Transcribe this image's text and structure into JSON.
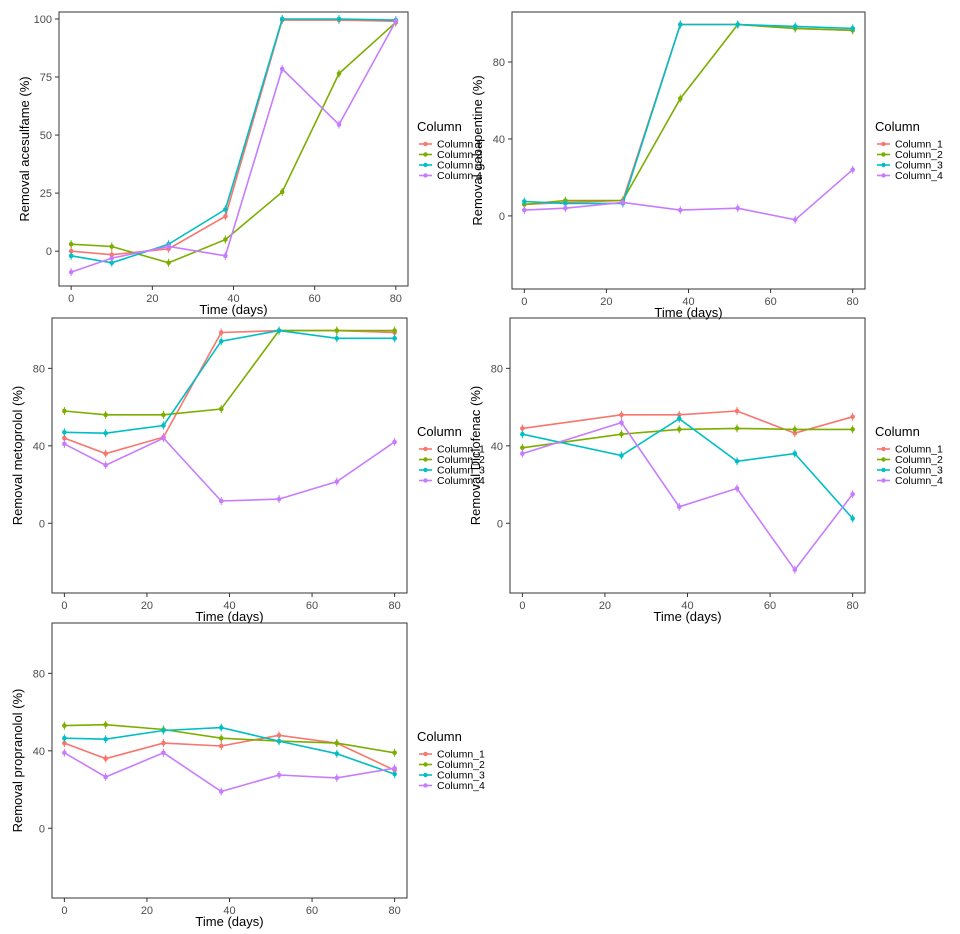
{
  "chart_data": [
    {
      "type": "line",
      "ylabel": "Removal acesulfame (%)",
      "xlabel": "Time (days)",
      "xlim": [
        -3,
        83
      ],
      "ylim": [
        -15,
        103
      ],
      "xticks": [
        0,
        20,
        40,
        60,
        80
      ],
      "yticks": [
        0,
        25,
        50,
        75,
        100
      ],
      "legend_title": "Column",
      "legend_placement": "right",
      "series": [
        {
          "name": "Column  1",
          "color": "#F8766D",
          "x": [
            0,
            10,
            24,
            38,
            52,
            66,
            80
          ],
          "y": [
            0,
            -1.5,
            1,
            15,
            99.5,
            99.5,
            99
          ]
        },
        {
          "name": "Column  2",
          "color": "#7CAE00",
          "x": [
            0,
            10,
            24,
            38,
            52,
            66,
            80
          ],
          "y": [
            3,
            2,
            -5,
            5,
            25.5,
            76.5,
            98.5
          ]
        },
        {
          "name": "Column  3",
          "color": "#00BFC4",
          "x": [
            0,
            10,
            24,
            38,
            52,
            66,
            80
          ],
          "y": [
            -2,
            -5,
            3,
            18,
            100,
            100,
            99.5
          ]
        },
        {
          "name": "Column  4",
          "color": "#C77CFF",
          "x": [
            0,
            10,
            24,
            38,
            52,
            66,
            80
          ],
          "y": [
            -9,
            -3,
            2,
            -2,
            78.5,
            54.5,
            99
          ]
        }
      ]
    },
    {
      "type": "line",
      "ylabel": "Removal gabapentine (%)",
      "xlabel": "Time (days)",
      "xlim": [
        -3,
        83
      ],
      "ylim": [
        -38,
        106
      ],
      "xticks": [
        0,
        20,
        40,
        60,
        80
      ],
      "yticks": [
        0,
        40,
        80
      ],
      "legend_title": "Column",
      "legend_placement": "right",
      "series": [
        {
          "name": "Column_1",
          "color": "#F8766D",
          "x": [
            0,
            10,
            24,
            38,
            52,
            66,
            80
          ],
          "y": [
            6,
            7,
            8,
            99.5,
            99.5,
            97.5,
            96.5
          ]
        },
        {
          "name": "Column_2",
          "color": "#7CAE00",
          "x": [
            0,
            10,
            24,
            38,
            52,
            66,
            80
          ],
          "y": [
            6,
            8,
            8,
            61,
            99.5,
            97.5,
            96.5
          ]
        },
        {
          "name": "Column_3",
          "color": "#00BFC4",
          "x": [
            0,
            10,
            24,
            38,
            52,
            66,
            80
          ],
          "y": [
            7.5,
            6.5,
            6.5,
            99.5,
            99.5,
            98.5,
            97.5
          ]
        },
        {
          "name": "Column_4",
          "color": "#C77CFF",
          "x": [
            0,
            10,
            24,
            38,
            52,
            66,
            80
          ],
          "y": [
            3,
            4,
            7,
            3,
            4,
            -2,
            24
          ]
        }
      ]
    },
    {
      "type": "line",
      "ylabel": "Removal  metoprolol (%)",
      "xlabel": "Time (days)",
      "xlim": [
        -3,
        83
      ],
      "ylim": [
        -36,
        106
      ],
      "xticks": [
        0,
        20,
        40,
        60,
        80
      ],
      "yticks": [
        0,
        40,
        80
      ],
      "legend_title": "Column",
      "legend_placement": "right",
      "series": [
        {
          "name": "Column_1",
          "color": "#F8766D",
          "x": [
            0,
            10,
            24,
            38,
            52,
            66,
            80
          ],
          "y": [
            44,
            36,
            44.5,
            98.5,
            99.5,
            99.5,
            98.5
          ]
        },
        {
          "name": "Column_2",
          "color": "#7CAE00",
          "x": [
            0,
            10,
            24,
            38,
            52,
            66,
            80
          ],
          "y": [
            58,
            56,
            56,
            59,
            99.5,
            99.5,
            99.5
          ]
        },
        {
          "name": "Column_3",
          "color": "#00BFC4",
          "x": [
            0,
            10,
            24,
            38,
            52,
            66,
            80
          ],
          "y": [
            47,
            46.5,
            50.5,
            94,
            99.5,
            95.5,
            95.5
          ]
        },
        {
          "name": "Column_4",
          "color": "#C77CFF",
          "x": [
            0,
            10,
            24,
            38,
            52,
            66,
            80
          ],
          "y": [
            41,
            30,
            44,
            11.5,
            12.5,
            21.5,
            42
          ]
        }
      ]
    },
    {
      "type": "line",
      "ylabel": "Removal  Diclofenac (%)",
      "xlabel": "Time (days)",
      "xlim": [
        -3,
        83
      ],
      "ylim": [
        -36,
        106
      ],
      "xticks": [
        0,
        20,
        40,
        60,
        80
      ],
      "yticks": [
        0,
        40,
        80
      ],
      "legend_title": "Column",
      "legend_placement": "right",
      "series": [
        {
          "name": "Column_1",
          "color": "#F8766D",
          "x": [
            0,
            24,
            38,
            52,
            66,
            80
          ],
          "y": [
            49,
            56,
            56,
            58,
            46.5,
            55
          ]
        },
        {
          "name": "Column_2",
          "color": "#7CAE00",
          "x": [
            0,
            24,
            38,
            52,
            66,
            80
          ],
          "y": [
            39,
            46,
            48.5,
            49,
            48.5,
            48.5
          ]
        },
        {
          "name": "Column_3",
          "color": "#00BFC4",
          "x": [
            0,
            24,
            38,
            52,
            66,
            80
          ],
          "y": [
            46,
            35,
            54,
            32,
            36,
            2.5
          ]
        },
        {
          "name": "Column_4",
          "color": "#C77CFF",
          "x": [
            0,
            24,
            38,
            52,
            66,
            80
          ],
          "y": [
            36,
            52,
            8.5,
            18,
            -24,
            15
          ]
        }
      ]
    },
    {
      "type": "line",
      "ylabel": "Removal  propranolol (%)",
      "xlabel": "Time (days)",
      "xlim": [
        -3,
        83
      ],
      "ylim": [
        -36,
        106
      ],
      "xticks": [
        0,
        20,
        40,
        60,
        80
      ],
      "yticks": [
        0,
        40,
        80
      ],
      "legend_title": "Column",
      "legend_placement": "right",
      "series": [
        {
          "name": "Column_1",
          "color": "#F8766D",
          "x": [
            0,
            10,
            24,
            38,
            52,
            66,
            80
          ],
          "y": [
            44,
            36,
            44,
            42.5,
            48,
            44,
            30
          ]
        },
        {
          "name": "Column_2",
          "color": "#7CAE00",
          "x": [
            0,
            10,
            24,
            38,
            52,
            66,
            80
          ],
          "y": [
            53,
            53.5,
            51,
            46.5,
            45,
            44,
            39
          ]
        },
        {
          "name": "Column_3",
          "color": "#00BFC4",
          "x": [
            0,
            10,
            24,
            38,
            52,
            66,
            80
          ],
          "y": [
            46.5,
            46,
            50.5,
            52,
            45,
            38.5,
            28
          ]
        },
        {
          "name": "Column_4",
          "color": "#C77CFF",
          "x": [
            0,
            10,
            24,
            38,
            52,
            66,
            80
          ],
          "y": [
            39,
            26.5,
            39,
            19,
            27.5,
            26,
            31
          ]
        }
      ]
    }
  ]
}
